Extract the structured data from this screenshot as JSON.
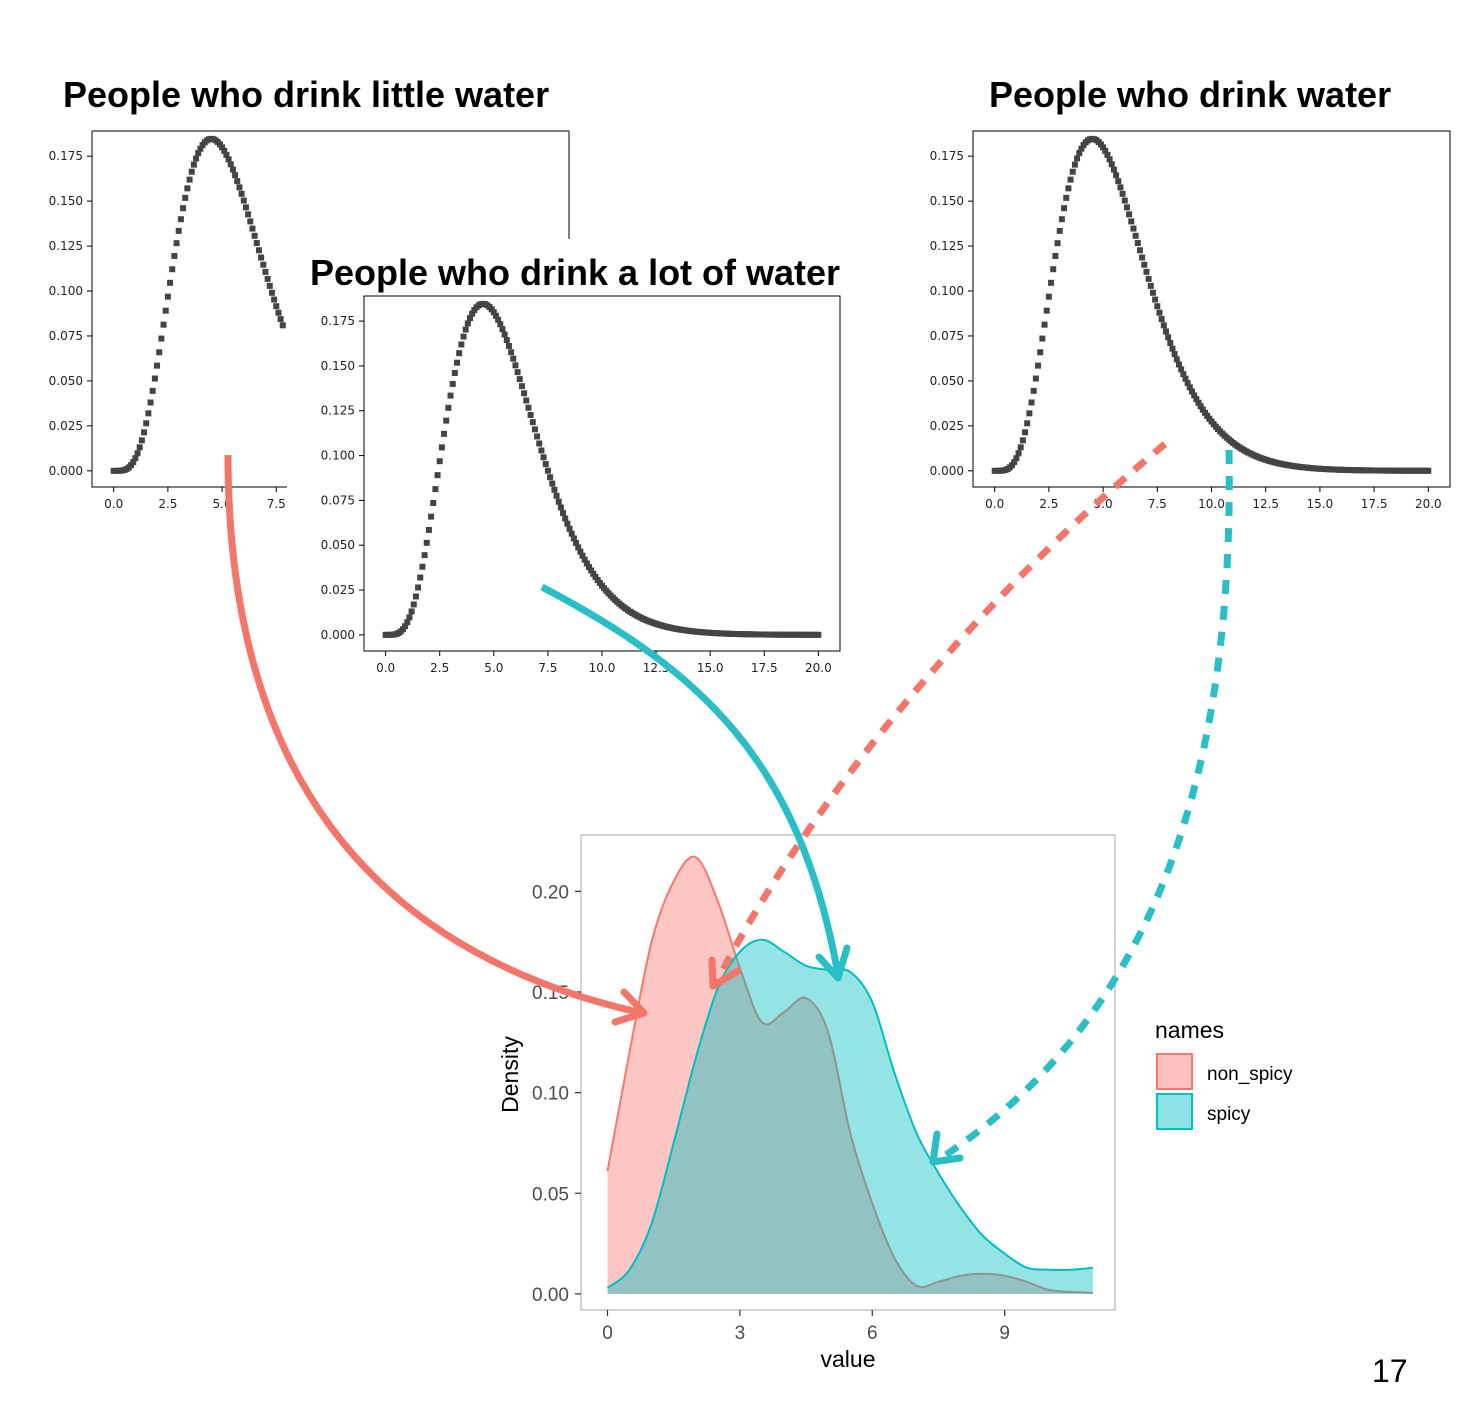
{
  "headings": {
    "little_water": "People who drink little water",
    "lot_of_water": "People who drink a lot of water",
    "water": "People who drink water"
  },
  "page_number": "17",
  "colors": {
    "non_spicy": "#f8766d",
    "spicy": "#00bfc4",
    "arrow_red": "#f4766b",
    "arrow_teal": "#2abfc6",
    "curve": "#444444"
  },
  "chart_data": [
    {
      "type": "scatter",
      "title": "",
      "distribution": "gamma (shape 5.5, scale 1)",
      "x_range": [
        0,
        20
      ],
      "x_visible_max": 7.8,
      "ylim": [
        0,
        0.18
      ],
      "xticks": [
        "0.0",
        "2.5",
        "5.0",
        "7.5"
      ],
      "yticks": [
        "0.000",
        "0.025",
        "0.050",
        "0.075",
        "0.100",
        "0.125",
        "0.150",
        "0.175"
      ]
    },
    {
      "type": "scatter",
      "title": "",
      "distribution": "gamma (shape 5.5, scale 1)",
      "x_range": [
        0,
        20
      ],
      "ylim": [
        0,
        0.18
      ],
      "xticks": [
        "0.0",
        "2.5",
        "5.0",
        "7.5",
        "10.0",
        "12.5",
        "15.0",
        "17.5",
        "20.0"
      ],
      "yticks": [
        "0.000",
        "0.025",
        "0.050",
        "0.075",
        "0.100",
        "0.125",
        "0.150",
        "0.175"
      ]
    },
    {
      "type": "scatter",
      "title": "",
      "distribution": "gamma (shape 5.5, scale 1)",
      "x_range": [
        0,
        20
      ],
      "ylim": [
        0,
        0.18
      ],
      "xticks": [
        "0.0",
        "2.5",
        "5.0",
        "7.5",
        "10.0",
        "12.5",
        "15.0",
        "17.5",
        "20.0"
      ],
      "yticks": [
        "0.000",
        "0.025",
        "0.050",
        "0.075",
        "0.100",
        "0.125",
        "0.150",
        "0.175"
      ]
    },
    {
      "type": "area",
      "title": "",
      "xlabel": "value",
      "ylabel": "Density",
      "xlim": [
        -0.6,
        11.5
      ],
      "ylim": [
        -0.008,
        0.228
      ],
      "xticks": [
        0,
        3,
        6,
        9
      ],
      "yticks": [
        0.0,
        0.05,
        0.1,
        0.15,
        0.2
      ],
      "ytick_labels": [
        "0.00",
        "0.05",
        "0.10",
        "0.15",
        "0.20"
      ],
      "legend": {
        "title": "names",
        "placement": "right"
      },
      "series": [
        {
          "name": "non_spicy",
          "x": [
            0,
            0.5,
            1.0,
            1.5,
            2.0,
            2.5,
            3.0,
            3.5,
            4.0,
            4.5,
            5.0,
            5.5,
            6.0,
            6.5,
            7.0,
            7.5,
            8.0,
            8.5,
            9.0,
            9.5,
            10.0,
            10.5,
            11.0
          ],
          "values": [
            0.061,
            0.12,
            0.175,
            0.205,
            0.217,
            0.195,
            0.162,
            0.135,
            0.14,
            0.147,
            0.13,
            0.08,
            0.045,
            0.018,
            0.004,
            0.006,
            0.009,
            0.01,
            0.009,
            0.006,
            0.002,
            0.001,
            0.0005
          ]
        },
        {
          "name": "spicy",
          "x": [
            0,
            0.5,
            1.0,
            1.5,
            2.0,
            2.5,
            3.0,
            3.5,
            4.0,
            4.5,
            5.0,
            5.5,
            6.0,
            6.5,
            7.0,
            7.5,
            8.0,
            8.5,
            9.0,
            9.5,
            10.0,
            10.5,
            11.0
          ],
          "values": [
            0.003,
            0.012,
            0.035,
            0.075,
            0.117,
            0.152,
            0.17,
            0.176,
            0.17,
            0.163,
            0.161,
            0.16,
            0.145,
            0.11,
            0.08,
            0.06,
            0.043,
            0.029,
            0.02,
            0.013,
            0.012,
            0.012,
            0.013
          ]
        }
      ]
    }
  ]
}
